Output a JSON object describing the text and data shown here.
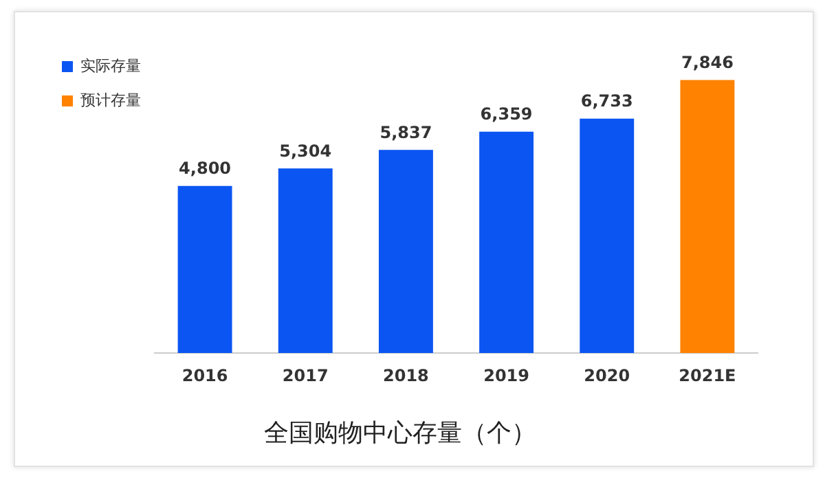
{
  "chart_data": {
    "type": "bar",
    "title": "全国购物中心存量（个）",
    "categories": [
      "2016",
      "2017",
      "2018",
      "2019",
      "2020",
      "2021E"
    ],
    "series": [
      {
        "name": "实际存量",
        "color": "#0b55f2",
        "values": [
          4800,
          5304,
          5837,
          6359,
          6733,
          null
        ],
        "value_labels": [
          "4,800",
          "5,304",
          "5,837",
          "6,359",
          "6,733",
          null
        ]
      },
      {
        "name": "预计存量",
        "color": "#ff8200",
        "values": [
          null,
          null,
          null,
          null,
          null,
          7846
        ],
        "value_labels": [
          null,
          null,
          null,
          null,
          null,
          "7,846"
        ]
      }
    ],
    "legend": "top left",
    "grid": false
  }
}
